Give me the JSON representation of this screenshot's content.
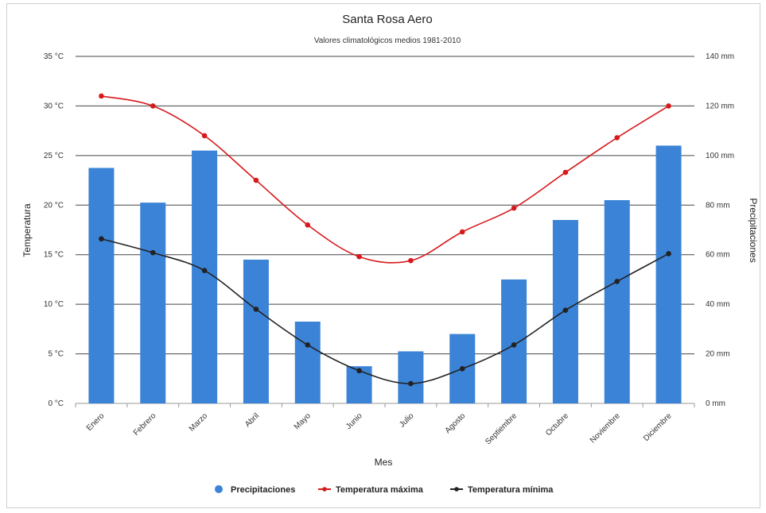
{
  "chart_data": {
    "type": "bar",
    "title": "Santa Rosa Aero",
    "subtitle": "Valores climatológicos medios 1981-2010",
    "xlabel": "Mes",
    "ylabel_left": "Temperatura",
    "ylabel_right": "Precipitaciones",
    "categories": [
      "Enero",
      "Febrero",
      "Marzo",
      "Abril",
      "Mayo",
      "Junio",
      "Julio",
      "Agosto",
      "Septiembre",
      "Octubre",
      "Noviembre",
      "Diciembre"
    ],
    "left_axis": {
      "min": 0,
      "max": 35,
      "step": 5,
      "unit": "°C",
      "ticks": [
        "0 °C",
        "5 °C",
        "10 °C",
        "15 °C",
        "20 °C",
        "25 °C",
        "30 °C",
        "35 °C"
      ]
    },
    "right_axis": {
      "min": 0,
      "max": 140,
      "step": 20,
      "unit": "mm",
      "ticks": [
        "0 mm",
        "20 mm",
        "40 mm",
        "60 mm",
        "80 mm",
        "100 mm",
        "120 mm",
        "140 mm"
      ]
    },
    "grid": true,
    "legend_position": "bottom",
    "series": [
      {
        "name": "Precipitaciones",
        "kind": "bar",
        "axis": "right",
        "color": "#3b83d6",
        "values": [
          95,
          81,
          102,
          58,
          33,
          15,
          21,
          28,
          50,
          74,
          82,
          104
        ]
      },
      {
        "name": "Temperatura máxima",
        "kind": "line",
        "axis": "left",
        "color": "#d7191c",
        "values": [
          31.0,
          30.0,
          27.0,
          22.5,
          18.0,
          14.8,
          14.4,
          17.3,
          19.7,
          23.3,
          26.8,
          30.0
        ]
      },
      {
        "name": "Temperatura mínima",
        "kind": "line",
        "axis": "left",
        "color": "#222222",
        "values": [
          16.6,
          15.2,
          13.4,
          9.5,
          5.9,
          3.3,
          2.0,
          3.5,
          5.9,
          9.4,
          12.3,
          15.1
        ]
      }
    ]
  }
}
